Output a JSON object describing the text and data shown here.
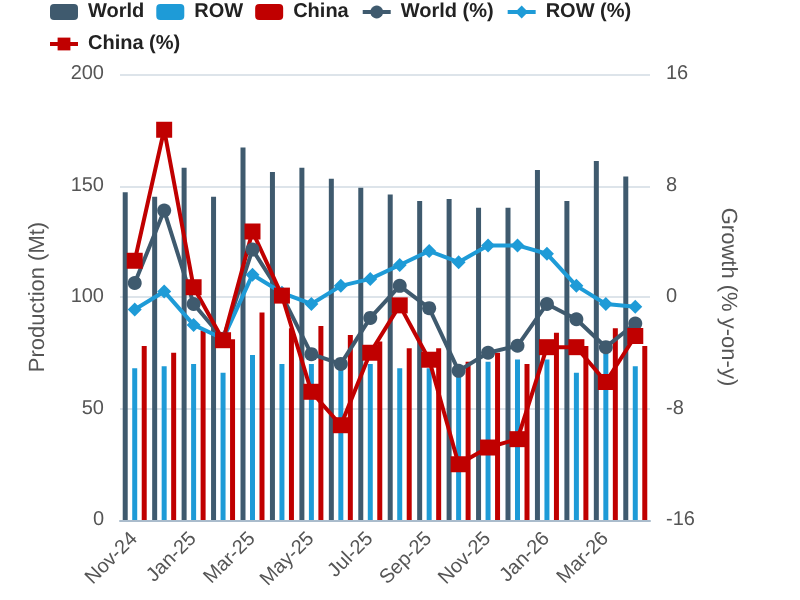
{
  "chart_data": {
    "type": "bar",
    "xlabel": null,
    "ylabel": "Production (Mt)",
    "y2label": "Growth (% y-on-y)",
    "categories": [
      "Nov-24",
      null,
      "Jan-25",
      null,
      "Mar-25",
      null,
      "May-25",
      null,
      "Jul-25",
      null,
      "Sep-25",
      null,
      "Nov-25",
      null,
      "Jan-26",
      null,
      "Mar-26",
      null
    ],
    "series": [
      {
        "name": "World",
        "color": "#3f5a6e",
        "values": [
          147,
          145,
          158,
          145,
          167,
          156,
          158,
          153,
          149,
          146,
          143,
          144,
          140,
          140,
          157,
          143,
          161,
          154
        ]
      },
      {
        "name": "ROW",
        "color": "#1e9bd7",
        "values": [
          68,
          69,
          70,
          66,
          74,
          70,
          70,
          69,
          70,
          68,
          68,
          66,
          71,
          72,
          72,
          66,
          75,
          69
        ]
      },
      {
        "name": "China",
        "color": "#c00000",
        "values": [
          78,
          75,
          85,
          81,
          93,
          86,
          87,
          83,
          80,
          77,
          77,
          71,
          75,
          70,
          84,
          78,
          86,
          78
        ]
      },
      {
        "name": "World (%)",
        "type": "line",
        "axis": "y2",
        "marker": "circle",
        "color": "#3f5a6e",
        "values": [
          1.0,
          6.2,
          -0.5,
          -3.0,
          3.4,
          0.1,
          -4.1,
          -4.8,
          -1.5,
          0.8,
          -0.8,
          -5.3,
          -4.0,
          -3.5,
          -0.5,
          -1.6,
          -3.6,
          -1.9
        ]
      },
      {
        "name": "ROW (%)",
        "type": "line",
        "axis": "y2",
        "marker": "diamond",
        "color": "#1e9bd7",
        "values": [
          -0.9,
          0.4,
          -2.0,
          -3.0,
          1.6,
          0.3,
          -0.5,
          0.8,
          1.3,
          2.3,
          3.3,
          2.5,
          3.7,
          3.7,
          3.1,
          0.8,
          -0.5,
          -0.7
        ]
      },
      {
        "name": "China (%)",
        "type": "line",
        "axis": "y2",
        "marker": "square",
        "color": "#c00000",
        "values": [
          2.6,
          12.0,
          0.7,
          -3.1,
          4.7,
          0.1,
          -6.8,
          -9.2,
          -4.0,
          -0.6,
          -4.5,
          -12.0,
          -10.8,
          -10.2,
          -3.6,
          -3.6,
          -6.1,
          -2.8
        ]
      }
    ],
    "ylim": [
      0,
      200
    ],
    "yticks": [
      0,
      50,
      100,
      150,
      200
    ],
    "y2lim": [
      -16,
      16
    ],
    "y2ticks": [
      -16,
      -8,
      0,
      8,
      16
    ],
    "grid": "y",
    "legend": "top"
  }
}
